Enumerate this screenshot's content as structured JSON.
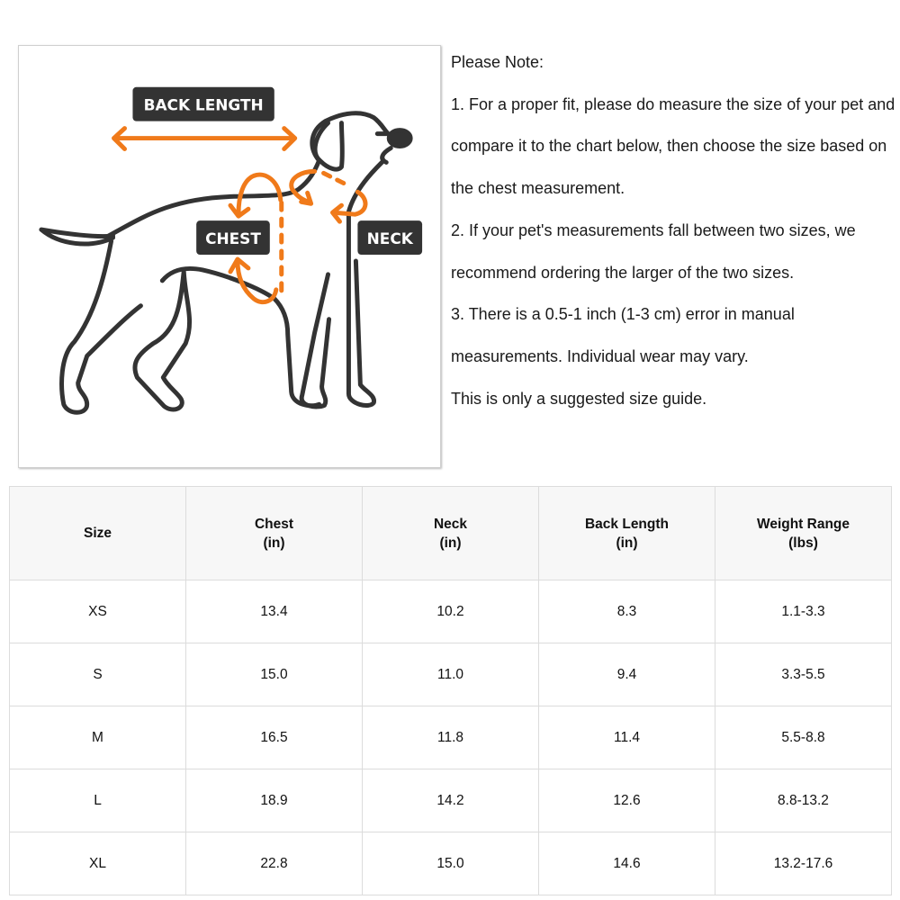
{
  "diagram": {
    "labels": {
      "back_length": "BACK LENGTH",
      "chest": "CHEST",
      "neck": "NECK"
    },
    "colors": {
      "arrow": "#f07a1a",
      "outline": "#333333",
      "label_bg": "#333333"
    }
  },
  "notes": {
    "title": "Please Note:",
    "items": [
      "1. For a proper fit, please do measure the size of your pet and compare it to the chart below, then choose the size based on the chest measurement.",
      "2. If your pet's measurements fall between two sizes, we recommend ordering the larger of the two sizes.",
      "3. There is a 0.5-1 inch (1-3 cm) error in manual measurements. Individual wear may vary.",
      "This is only a suggested size guide."
    ]
  },
  "table": {
    "headers": [
      {
        "name": "Size",
        "unit": ""
      },
      {
        "name": "Chest",
        "unit": "(in)"
      },
      {
        "name": "Neck",
        "unit": "(in)"
      },
      {
        "name": "Back Length",
        "unit": "(in)"
      },
      {
        "name": "Weight Range",
        "unit": "(lbs)"
      }
    ],
    "rows": [
      [
        "XS",
        "13.4",
        "10.2",
        "8.3",
        "1.1-3.3"
      ],
      [
        "S",
        "15.0",
        "11.0",
        "9.4",
        "3.3-5.5"
      ],
      [
        "M",
        "16.5",
        "11.8",
        "11.4",
        "5.5-8.8"
      ],
      [
        "L",
        "18.9",
        "14.2",
        "12.6",
        "8.8-13.2"
      ],
      [
        "XL",
        "22.8",
        "15.0",
        "14.6",
        "13.2-17.6"
      ]
    ]
  }
}
